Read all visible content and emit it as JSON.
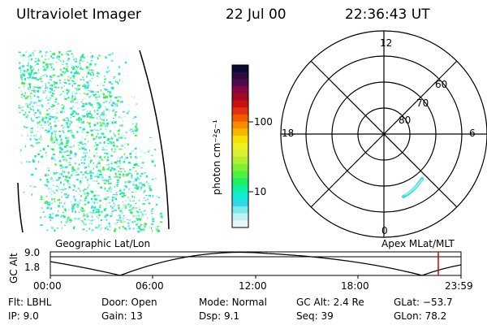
{
  "header": {
    "instrument": "Ultraviolet Imager",
    "date": "22 Jul 00",
    "time": "22:36:43 UT"
  },
  "colorbar": {
    "unit_label": "photon cm⁻²s⁻¹",
    "ticks": [
      "100",
      "10"
    ],
    "colors": [
      "#0a0a30",
      "#2a0a40",
      "#500a50",
      "#800a40",
      "#a00a20",
      "#c81010",
      "#e03010",
      "#f05a00",
      "#f88a00",
      "#f8b800",
      "#f8e000",
      "#f0f020",
      "#d8f030",
      "#b0f030",
      "#80f030",
      "#50f040",
      "#20f060",
      "#10f0a0",
      "#10f0d0",
      "#30d8e8",
      "#80e8e8",
      "#c0f0f0",
      "#e8f8f8"
    ]
  },
  "polar": {
    "clock_labels": [
      "12",
      "18",
      "6",
      "0"
    ],
    "lat_labels": [
      "60",
      "70",
      "80"
    ]
  },
  "altitude_panel": {
    "left_title": "Geographic Lat/Lon",
    "right_title": "Apex MLat/MLT",
    "y_label": "GC Alt",
    "y_ticks": [
      "9.0",
      "1.8"
    ],
    "x_ticks": [
      "00:00",
      "06:00",
      "12:00",
      "18:00",
      "23:59"
    ]
  },
  "info_rows": [
    [
      {
        "label": "Flt:",
        "value": "LBHL"
      },
      {
        "label": "Door:",
        "value": "Open"
      },
      {
        "label": "Mode:",
        "value": "Normal"
      },
      {
        "label": "GC Alt:",
        "value": "2.4 Re"
      },
      {
        "label": "GLat:",
        "value": "−53.7"
      }
    ],
    [
      {
        "label": "IP:",
        "value": "9.0"
      },
      {
        "label": "Gain:",
        "value": "13"
      },
      {
        "label": "Dsp:",
        "value": "9.1"
      },
      {
        "label": "Seq:",
        "value": "39"
      },
      {
        "label": "GLon:",
        "value": "78.2"
      }
    ]
  ]
}
